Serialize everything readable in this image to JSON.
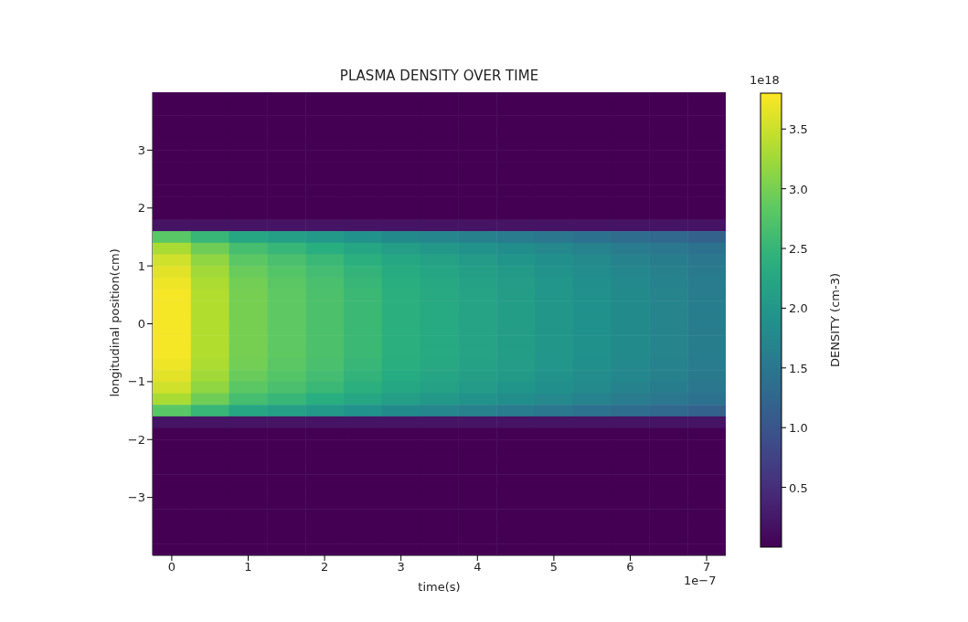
{
  "chart_data": {
    "type": "heatmap",
    "title": "PLASMA DENSITY OVER TIME",
    "xlabel": "time(s)",
    "ylabel": "longitudinal position(cm)",
    "clabel": "DENSITY (cm-3)",
    "annotations": [
      "1e−7",
      "1e18"
    ],
    "x": [
      0,
      0.5,
      1,
      1.5,
      2,
      2.5,
      3,
      3.5,
      4,
      4.5,
      5,
      5.5,
      6,
      6.5,
      7
    ],
    "xlim": [
      -0.25,
      7.25
    ],
    "xticks": [
      0,
      1,
      2,
      3,
      4,
      5,
      6,
      7
    ],
    "ylim": [
      -4,
      4
    ],
    "yticks": [
      -3,
      -2,
      -1,
      0,
      1,
      2,
      3
    ],
    "clim": [
      0,
      3.8
    ],
    "cticks": [
      {
        "value": 0.5,
        "label": "0.5"
      },
      {
        "value": 1,
        "label": "1.0"
      },
      {
        "value": 1.5,
        "label": "1.5"
      },
      {
        "value": 2,
        "label": "2.0"
      },
      {
        "value": 2.5,
        "label": "2.5"
      },
      {
        "value": 3,
        "label": "3.0"
      },
      {
        "value": 3.5,
        "label": "3.5"
      }
    ],
    "cells": [
      [
        0,
        0,
        0,
        0,
        0,
        0,
        0,
        0,
        0,
        0,
        0,
        0,
        0,
        0,
        0
      ],
      [
        0,
        0,
        0,
        0,
        0,
        0,
        0,
        0,
        0,
        0,
        0,
        0,
        0,
        0,
        0
      ],
      [
        0,
        0,
        0,
        0,
        0,
        0,
        0,
        0,
        0,
        0,
        0,
        0,
        0,
        0,
        0
      ],
      [
        0,
        0,
        0,
        0,
        0,
        0,
        0,
        0,
        0,
        0,
        0,
        0,
        0,
        0,
        0
      ],
      [
        0,
        0,
        0,
        0,
        0,
        0,
        0,
        0,
        0,
        0,
        0,
        0,
        0,
        0,
        0
      ],
      [
        0,
        0,
        0,
        0,
        0,
        0,
        0,
        0,
        0,
        0,
        0,
        0,
        0,
        0,
        0
      ],
      [
        0,
        0,
        0,
        0,
        0,
        0,
        0,
        0,
        0,
        0,
        0,
        0,
        0,
        0,
        0
      ],
      [
        0,
        0,
        0,
        0,
        0,
        0,
        0,
        0,
        0,
        0,
        0,
        0,
        0,
        0,
        0
      ],
      [
        0,
        0,
        0,
        0,
        0,
        0,
        0,
        0,
        0,
        0,
        0,
        0,
        0,
        0,
        0
      ],
      [
        0,
        0,
        0,
        0,
        0,
        0,
        0,
        0,
        0,
        0,
        0,
        0,
        0,
        0,
        0
      ],
      [
        0,
        0,
        0,
        0,
        0,
        0,
        0,
        0,
        0,
        0,
        0,
        0,
        0,
        0,
        0
      ],
      [
        0.2,
        0.2,
        0.2,
        0.2,
        0.2,
        0.2,
        0.2,
        0.2,
        0.2,
        0.2,
        0.2,
        0.2,
        0.2,
        0.2,
        0.2
      ],
      [
        2.81,
        2.51,
        2.25,
        2.14,
        2.03,
        1.91,
        1.8,
        1.73,
        1.65,
        1.58,
        1.5,
        1.43,
        1.35,
        1.28,
        1.2
      ],
      [
        3.3,
        2.95,
        2.64,
        2.51,
        2.38,
        2.24,
        2.11,
        2.02,
        1.94,
        1.85,
        1.76,
        1.67,
        1.58,
        1.5,
        1.41
      ],
      [
        3.53,
        3.15,
        2.82,
        2.68,
        2.54,
        2.4,
        2.26,
        2.16,
        2.07,
        1.97,
        1.88,
        1.79,
        1.69,
        1.6,
        1.5
      ],
      [
        3.64,
        3.25,
        2.91,
        2.76,
        2.62,
        2.47,
        2.33,
        2.23,
        2.13,
        2.04,
        1.94,
        1.84,
        1.75,
        1.65,
        1.55
      ],
      [
        3.71,
        3.32,
        2.97,
        2.82,
        2.67,
        2.52,
        2.38,
        2.28,
        2.18,
        2.08,
        1.98,
        1.88,
        1.78,
        1.68,
        1.58
      ],
      [
        3.75,
        3.35,
        3,
        2.85,
        2.7,
        2.55,
        2.4,
        2.3,
        2.2,
        2.1,
        2,
        1.9,
        1.8,
        1.7,
        1.6
      ],
      [
        3.75,
        3.35,
        3,
        2.85,
        2.7,
        2.55,
        2.4,
        2.3,
        2.2,
        2.1,
        2,
        1.9,
        1.8,
        1.7,
        1.6
      ],
      [
        3.75,
        3.35,
        3,
        2.85,
        2.7,
        2.55,
        2.4,
        2.3,
        2.2,
        2.1,
        2,
        1.9,
        1.8,
        1.7,
        1.6
      ],
      [
        3.75,
        3.35,
        3,
        2.85,
        2.7,
        2.55,
        2.4,
        2.3,
        2.2,
        2.1,
        2,
        1.9,
        1.8,
        1.7,
        1.6
      ],
      [
        3.75,
        3.35,
        3,
        2.85,
        2.7,
        2.55,
        2.4,
        2.3,
        2.2,
        2.1,
        2,
        1.9,
        1.8,
        1.7,
        1.6
      ],
      [
        3.75,
        3.35,
        3,
        2.85,
        2.7,
        2.55,
        2.4,
        2.3,
        2.2,
        2.1,
        2,
        1.9,
        1.8,
        1.7,
        1.6
      ],
      [
        3.71,
        3.32,
        2.97,
        2.82,
        2.67,
        2.52,
        2.38,
        2.28,
        2.18,
        2.08,
        1.98,
        1.88,
        1.78,
        1.68,
        1.58
      ],
      [
        3.64,
        3.25,
        2.91,
        2.76,
        2.62,
        2.47,
        2.33,
        2.23,
        2.13,
        2.04,
        1.94,
        1.84,
        1.75,
        1.65,
        1.55
      ],
      [
        3.53,
        3.15,
        2.82,
        2.68,
        2.54,
        2.4,
        2.26,
        2.16,
        2.07,
        1.97,
        1.88,
        1.79,
        1.69,
        1.6,
        1.5
      ],
      [
        3.3,
        2.95,
        2.64,
        2.51,
        2.38,
        2.24,
        2.11,
        2.02,
        1.94,
        1.85,
        1.76,
        1.67,
        1.58,
        1.5,
        1.41
      ],
      [
        2.81,
        2.51,
        2.25,
        2.14,
        2.03,
        1.91,
        1.8,
        1.73,
        1.65,
        1.58,
        1.5,
        1.43,
        1.35,
        1.28,
        1.2
      ],
      [
        0.2,
        0.2,
        0.2,
        0.2,
        0.2,
        0.2,
        0.2,
        0.2,
        0.2,
        0.2,
        0.2,
        0.2,
        0.2,
        0.2,
        0.2
      ],
      [
        0,
        0,
        0,
        0,
        0,
        0,
        0,
        0,
        0,
        0,
        0,
        0,
        0,
        0,
        0
      ],
      [
        0,
        0,
        0,
        0,
        0,
        0,
        0,
        0,
        0,
        0,
        0,
        0,
        0,
        0,
        0
      ],
      [
        0,
        0,
        0,
        0,
        0,
        0,
        0,
        0,
        0,
        0,
        0,
        0,
        0,
        0,
        0
      ],
      [
        0,
        0,
        0,
        0,
        0,
        0,
        0,
        0,
        0,
        0,
        0,
        0,
        0,
        0,
        0
      ],
      [
        0,
        0,
        0,
        0,
        0,
        0,
        0,
        0,
        0,
        0,
        0,
        0,
        0,
        0,
        0
      ],
      [
        0,
        0,
        0,
        0,
        0,
        0,
        0,
        0,
        0,
        0,
        0,
        0,
        0,
        0,
        0
      ],
      [
        0,
        0,
        0,
        0,
        0,
        0,
        0,
        0,
        0,
        0,
        0,
        0,
        0,
        0,
        0
      ],
      [
        0,
        0,
        0,
        0,
        0,
        0,
        0,
        0,
        0,
        0,
        0,
        0,
        0,
        0,
        0
      ],
      [
        0,
        0,
        0,
        0,
        0,
        0,
        0,
        0,
        0,
        0,
        0,
        0,
        0,
        0,
        0
      ],
      [
        0,
        0,
        0,
        0,
        0,
        0,
        0,
        0,
        0,
        0,
        0,
        0,
        0,
        0,
        0
      ],
      [
        0,
        0,
        0,
        0,
        0,
        0,
        0,
        0,
        0,
        0,
        0,
        0,
        0,
        0,
        0
      ]
    ]
  }
}
